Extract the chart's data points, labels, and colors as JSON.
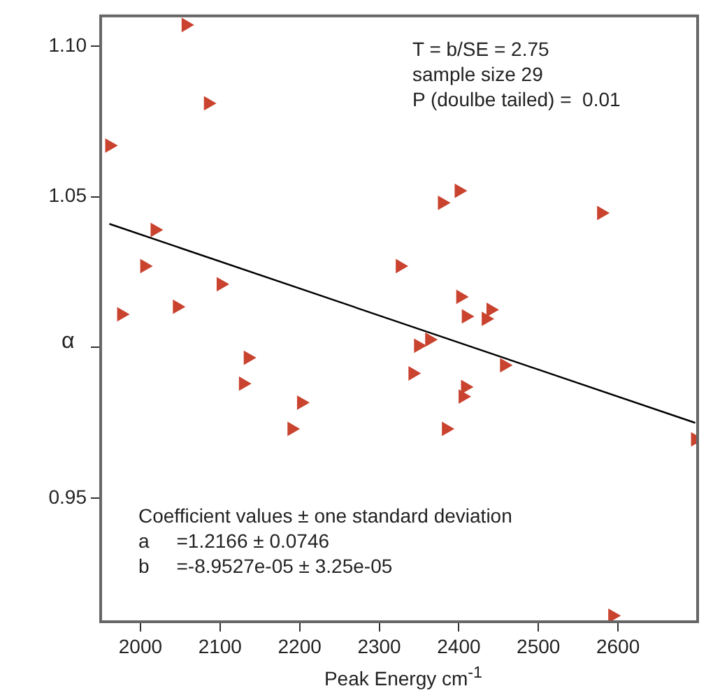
{
  "chart_data": {
    "type": "scatter",
    "xlabel": "Peak Energy cm$^{-1}$",
    "ylabel": "α",
    "xlim": [
      1950,
      2700
    ],
    "xticks": [
      2000,
      2100,
      2200,
      2300,
      2400,
      2500,
      2600
    ],
    "ylim": [
      0.909,
      1.11
    ],
    "yticks": [
      {
        "value": 0.95,
        "label": "0.95"
      },
      {
        "value": 1.0,
        "label": null
      },
      {
        "value": 1.05,
        "label": "1.05"
      },
      {
        "value": 1.1,
        "label": "1.10"
      }
    ],
    "grid": false,
    "legend": false,
    "series": [
      {
        "type": "scatter",
        "marker": "triangle",
        "color": "#c9432f",
        "x": [
          1961,
          2057,
          2085,
          2018,
          2005,
          1976,
          2046,
          2101,
          2135,
          2129,
          2202,
          2190,
          2326,
          2379,
          2400,
          2579,
          2402,
          2409,
          2440,
          2434,
          2349,
          2363,
          2342,
          2457,
          2408,
          2405,
          2384,
          2697,
          2593
        ],
        "values": [
          1.067,
          1.107,
          1.081,
          1.039,
          1.027,
          1.011,
          1.0135,
          1.021,
          0.9966,
          0.988,
          0.9817,
          0.973,
          1.027,
          1.048,
          1.052,
          1.0446,
          1.0168,
          1.0103,
          1.0125,
          1.0095,
          1.0006,
          1.0026,
          0.9914,
          0.9941,
          0.9869,
          0.9837,
          0.973,
          0.9695,
          0.911
        ]
      },
      {
        "type": "line",
        "color": "#000000",
        "x": [
          1961,
          2697
        ],
        "values": [
          1.041,
          0.975
        ]
      }
    ],
    "annotations": [
      "T = b/SE = 2.75",
      "sample size 29",
      "P (doulbe tailed) =  0.01",
      "Coefficient values ± one standard deviation",
      "a     =1.2166 ± 0.0746",
      "b     =-8.9527e-05 ± 3.25e-05"
    ]
  }
}
